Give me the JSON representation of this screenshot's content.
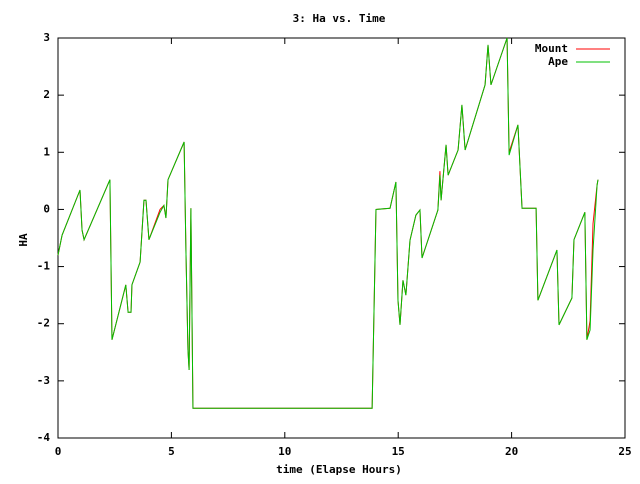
{
  "chart_data": {
    "type": "line",
    "title": "3: Ha vs. Time",
    "x_label": "time (Elapse Hours)",
    "y_label": "HA",
    "x": [
      0,
      0.18,
      0.97,
      1.06,
      1.15,
      2.29,
      2.38,
      2.99,
      3.09,
      3.22,
      3.26,
      3.62,
      3.79,
      3.88,
      4.01,
      4.5,
      4.67,
      4.76,
      4.85,
      5.56,
      5.64,
      5.73,
      5.78,
      5.86,
      5.95,
      13.85,
      14.02,
      14.64,
      14.9,
      14.99,
      15.08,
      15.21,
      15.34,
      15.52,
      15.78,
      15.96,
      16.05,
      16.75,
      16.84,
      16.89,
      17.11,
      17.2,
      17.64,
      17.81,
      17.95,
      18.83,
      18.96,
      19.09,
      19.8,
      19.89,
      20.28,
      20.46,
      21.08,
      21.16,
      22.0,
      22.09,
      22.66,
      22.75,
      23.23,
      23.32,
      23.46,
      23.59,
      23.77,
      23.81
    ],
    "series": [
      {
        "name": "Mount",
        "color": "#ff0000",
        "values": [
          -0.8,
          -0.45,
          0.34,
          -0.36,
          -0.53,
          0.52,
          -2.28,
          -1.32,
          -1.8,
          -1.8,
          -1.32,
          -0.92,
          0.16,
          0.16,
          -0.53,
          0.0,
          0.07,
          -0.15,
          0.52,
          1.18,
          -0.71,
          -2.46,
          -2.81,
          0.02,
          -3.48,
          -3.48,
          0.0,
          0.02,
          0.48,
          -1.59,
          -2.02,
          -1.24,
          -1.5,
          -0.54,
          -0.1,
          -0.01,
          -0.85,
          -0.01,
          0.67,
          0.16,
          1.13,
          0.6,
          1.04,
          1.83,
          1.04,
          2.18,
          2.88,
          2.18,
          3.0,
          1.0,
          1.48,
          0.02,
          0.02,
          -1.59,
          -0.71,
          -2.02,
          -1.55,
          -0.53,
          -0.05,
          -2.28,
          -1.95,
          -0.25,
          0.43,
          0.52
        ]
      },
      {
        "name": "Ape",
        "color": "#00c000",
        "values": [
          -0.8,
          -0.45,
          0.34,
          -0.36,
          -0.53,
          0.52,
          -2.28,
          -1.32,
          -1.8,
          -1.8,
          -1.32,
          -0.92,
          0.16,
          0.16,
          -0.53,
          -0.05,
          0.07,
          -0.15,
          0.52,
          1.18,
          -0.71,
          -2.46,
          -2.81,
          0.02,
          -3.48,
          -3.48,
          0.0,
          0.02,
          0.48,
          -1.59,
          -2.02,
          -1.24,
          -1.5,
          -0.54,
          -0.1,
          -0.01,
          -0.85,
          -0.01,
          0.6,
          0.16,
          1.13,
          0.6,
          1.04,
          1.83,
          1.04,
          2.18,
          2.88,
          2.18,
          3.0,
          0.95,
          1.48,
          0.02,
          0.02,
          -1.59,
          -0.71,
          -2.02,
          -1.55,
          -0.53,
          -0.05,
          -2.28,
          -2.11,
          -0.71,
          0.43,
          0.52
        ]
      }
    ],
    "xlim": [
      0,
      25
    ],
    "xticks": [
      0,
      5,
      10,
      15,
      20,
      25
    ],
    "ylim": [
      -4,
      3
    ],
    "yticks": [
      -4,
      -3,
      -2,
      -1,
      0,
      1,
      2,
      3
    ],
    "legend": "upper right"
  }
}
